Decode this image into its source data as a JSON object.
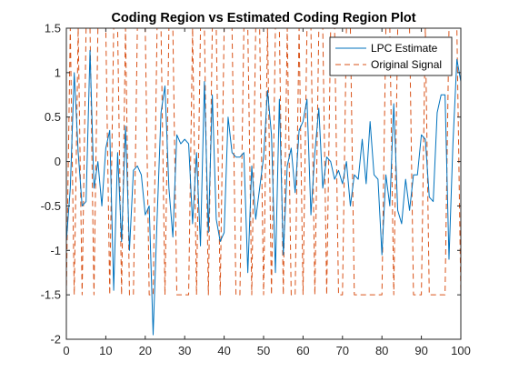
{
  "chart_data": {
    "type": "line",
    "title": "Coding Region vs Estimated Coding Region Plot",
    "xlabel": "",
    "ylabel": "",
    "xlim": [
      0,
      100
    ],
    "ylim": [
      -2,
      1.5
    ],
    "xticks": [
      0,
      10,
      20,
      30,
      40,
      50,
      60,
      70,
      80,
      90,
      100
    ],
    "yticks": [
      -2,
      -1.5,
      -1,
      -0.5,
      0,
      0.5,
      1,
      1.5
    ],
    "ytick_labels": [
      "-2",
      "-1.5",
      "-1",
      "-0.5",
      "0",
      "0.5",
      "1",
      "1.5"
    ],
    "legend_position": "top-right",
    "grid": false,
    "series": [
      {
        "name": "LPC Estimate",
        "color": "#0072BD",
        "style": "solid",
        "x": [
          0,
          1,
          2,
          3,
          4,
          5,
          6,
          7,
          8,
          9,
          10,
          11,
          12,
          13,
          14,
          15,
          16,
          17,
          18,
          19,
          20,
          21,
          22,
          23,
          24,
          25,
          26,
          27,
          28,
          29,
          30,
          31,
          32,
          33,
          34,
          35,
          36,
          37,
          38,
          39,
          40,
          41,
          42,
          43,
          44,
          45,
          46,
          47,
          48,
          49,
          50,
          51,
          52,
          53,
          54,
          55,
          56,
          57,
          58,
          59,
          60,
          61,
          62,
          63,
          64,
          65,
          66,
          67,
          68,
          69,
          70,
          71,
          72,
          73,
          74,
          75,
          76,
          77,
          78,
          79,
          80,
          81,
          82,
          83,
          84,
          85,
          86,
          87,
          88,
          89,
          90,
          91,
          92,
          93,
          94,
          95,
          96,
          97,
          98,
          99,
          100
        ],
        "y": [
          -0.9,
          -0.3,
          1.0,
          0.1,
          -0.5,
          -0.45,
          1.25,
          -0.3,
          0.0,
          -0.5,
          0.15,
          0.35,
          -1.45,
          0.1,
          -0.9,
          0.4,
          -1.0,
          -0.1,
          -0.05,
          -0.15,
          -0.6,
          -0.5,
          -1.95,
          -0.65,
          0.55,
          0.85,
          -0.3,
          -0.85,
          0.3,
          0.2,
          0.25,
          0.2,
          -0.7,
          0.1,
          -0.95,
          0.9,
          -0.8,
          0.75,
          -0.65,
          -0.9,
          -0.8,
          0.5,
          0.1,
          0.05,
          0.05,
          0.1,
          -1.25,
          -0.05,
          -0.65,
          -0.3,
          0.05,
          0.8,
          0.3,
          -1.25,
          0.7,
          -1.05,
          -0.05,
          0.15,
          -0.35,
          0.35,
          0.45,
          0.7,
          -0.6,
          0.1,
          0.6,
          -0.3,
          0.05,
          0.0,
          -0.2,
          -0.1,
          -0.25,
          0.0,
          -0.5,
          -0.15,
          -0.2,
          0.25,
          -0.25,
          0.45,
          -0.15,
          -0.2,
          -1.05,
          -0.15,
          -0.5,
          0.65,
          -0.55,
          -0.7,
          -0.2,
          -0.55,
          -0.15,
          -0.15,
          0.3,
          0.25,
          -0.4,
          -0.45,
          0.55,
          0.75,
          0.75,
          -1.1,
          0.2,
          1.15,
          0.9
        ]
      },
      {
        "name": "Original Signal",
        "color": "#D95319",
        "style": "dashed",
        "x": [
          0,
          1,
          2,
          3,
          4,
          5,
          6,
          7,
          8,
          9,
          10,
          11,
          12,
          13,
          14,
          15,
          16,
          17,
          18,
          19,
          20,
          21,
          22,
          23,
          24,
          25,
          26,
          27,
          28,
          29,
          30,
          31,
          32,
          33,
          34,
          35,
          36,
          37,
          38,
          39,
          40,
          41,
          42,
          43,
          44,
          45,
          46,
          47,
          48,
          49,
          50,
          51,
          52,
          53,
          54,
          55,
          56,
          57,
          58,
          59,
          60,
          61,
          62,
          63,
          64,
          65,
          66,
          67,
          68,
          69,
          70,
          71,
          72,
          73,
          74,
          75,
          76,
          77,
          78,
          79,
          80,
          81,
          82,
          83,
          84,
          85,
          86,
          87,
          88,
          89,
          90,
          91,
          92,
          93,
          94,
          95,
          96,
          97,
          98,
          99,
          100
        ],
        "y": [
          -1.5,
          1.5,
          -1.5,
          1.5,
          -1.5,
          1.5,
          1.5,
          -1.5,
          1.5,
          1.5,
          1.5,
          -1.5,
          1.5,
          1.5,
          -1.5,
          1.5,
          -1.5,
          -1.5,
          1.5,
          1.5,
          1.5,
          -1.5,
          -1.5,
          1.5,
          1.5,
          -1.5,
          1.5,
          1.5,
          -1.5,
          -1.5,
          -1.5,
          -1.5,
          1.5,
          -1.5,
          1.5,
          1.5,
          -1.5,
          1.5,
          1.5,
          -1.5,
          1.5,
          1.5,
          1.5,
          -1.5,
          -1.5,
          1.5,
          1.5,
          -1.5,
          1.5,
          1.5,
          -1.5,
          1.5,
          -1.5,
          1.5,
          1.5,
          -1.5,
          1.5,
          -1.5,
          -1.5,
          1.5,
          -1.5,
          1.5,
          1.5,
          -1.5,
          1.5,
          1.5,
          -1.5,
          1.5,
          1.5,
          -1.5,
          -1.5,
          1.5,
          1.5,
          -1.5,
          -1.5,
          -1.5,
          -1.5,
          -1.5,
          -1.5,
          -1.5,
          -1.5,
          1.5,
          1.5,
          -1.5,
          1.5,
          1.5,
          1.5,
          1.5,
          -1.5,
          -1.5,
          -1.5,
          1.5,
          -1.5,
          -1.5,
          -1.5,
          -1.5,
          -1.5,
          1.5,
          1.5,
          1.5,
          -1.5
        ]
      }
    ]
  }
}
